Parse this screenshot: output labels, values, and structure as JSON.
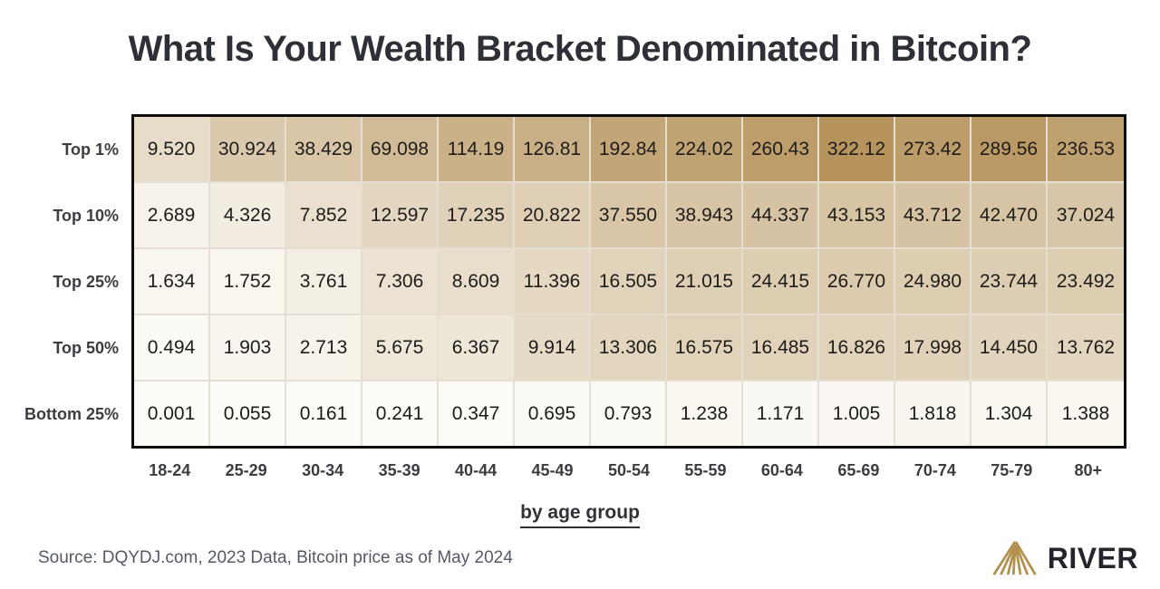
{
  "title": "What Is Your Wealth Bracket Denominated in Bitcoin?",
  "chart_data": {
    "type": "heatmap",
    "title": "What Is Your Wealth Bracket Denominated in Bitcoin?",
    "xlabel": "by age group",
    "categories": [
      "18-24",
      "25-29",
      "30-34",
      "35-39",
      "40-44",
      "45-49",
      "50-54",
      "55-59",
      "60-64",
      "65-69",
      "70-74",
      "75-79",
      "80+"
    ],
    "rows": [
      "Top 1%",
      "Top 10%",
      "Top 25%",
      "Top 50%",
      "Bottom 25%"
    ],
    "series": [
      {
        "name": "Top 1%",
        "values": [
          "9.520",
          "30.924",
          "38.429",
          "69.098",
          "114.19",
          "126.81",
          "192.84",
          "224.02",
          "260.43",
          "322.12",
          "273.42",
          "289.56",
          "236.53"
        ]
      },
      {
        "name": "Top 10%",
        "values": [
          "2.689",
          "4.326",
          "7.852",
          "12.597",
          "17.235",
          "20.822",
          "37.550",
          "38.943",
          "44.337",
          "43.153",
          "43.712",
          "42.470",
          "37.024"
        ]
      },
      {
        "name": "Top 25%",
        "values": [
          "1.634",
          "1.752",
          "3.761",
          "7.306",
          "8.609",
          "11.396",
          "16.505",
          "21.015",
          "24.415",
          "26.770",
          "24.980",
          "23.744",
          "23.492"
        ]
      },
      {
        "name": "Top 50%",
        "values": [
          "0.494",
          "1.903",
          "2.713",
          "5.675",
          "6.367",
          "9.914",
          "13.306",
          "16.575",
          "16.485",
          "16.826",
          "17.998",
          "14.450",
          "13.762"
        ]
      },
      {
        "name": "Bottom 25%",
        "values": [
          "0.001",
          "0.055",
          "0.161",
          "0.241",
          "0.347",
          "0.695",
          "0.793",
          "1.238",
          "1.171",
          "1.005",
          "1.818",
          "1.304",
          "1.388"
        ]
      }
    ],
    "value_range": [
      0.001,
      322.12
    ],
    "legend": "none",
    "grid": "cell-borders",
    "color_scale": {
      "min_color": "#fdfcf8",
      "max_color": "#b6945c",
      "stops": [
        [
          0,
          0
        ],
        [
          0.5,
          0.02
        ],
        [
          1,
          0.035
        ],
        [
          2,
          0.07
        ],
        [
          3,
          0.1
        ],
        [
          5,
          0.17
        ],
        [
          8,
          0.27
        ],
        [
          10,
          0.32
        ],
        [
          13,
          0.36
        ],
        [
          17,
          0.4
        ],
        [
          21,
          0.43
        ],
        [
          27,
          0.47
        ],
        [
          38,
          0.52
        ],
        [
          45,
          0.55
        ],
        [
          70,
          0.63
        ],
        [
          115,
          0.72
        ],
        [
          130,
          0.74
        ],
        [
          190,
          0.82
        ],
        [
          225,
          0.86
        ],
        [
          260,
          0.9
        ],
        [
          290,
          0.95
        ],
        [
          322.12,
          1
        ]
      ]
    }
  },
  "footer": {
    "source": "Source: DQYDJ.com, 2023 Data, Bitcoin price as of May 2024",
    "brand": "RIVER"
  },
  "colors": {
    "title_text": "#2d3036",
    "label_text": "#3a3d42",
    "cell_text": "#1d1c1a",
    "table_border": "#0c0c0c",
    "cell_divider": "#e5dfd3",
    "source_text": "#535a66",
    "brand_text": "#22262c",
    "brand_gold": "#b2914f"
  }
}
